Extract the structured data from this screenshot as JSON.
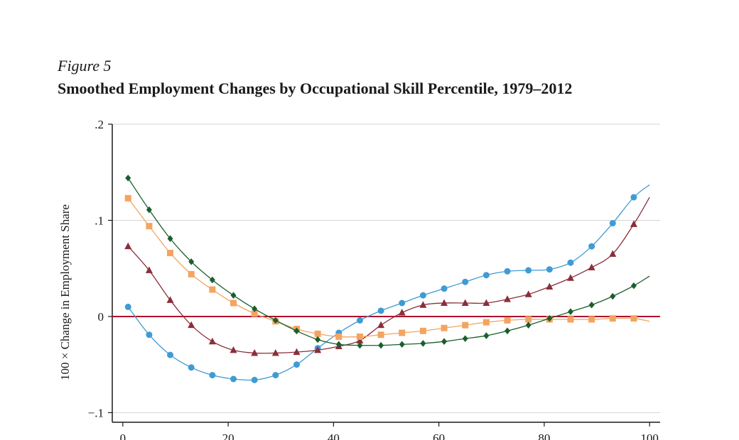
{
  "figure": {
    "label": "Figure 5",
    "title": "Smoothed Employment Changes by Occupational Skill Percentile, 1979–2012"
  },
  "chart_data": {
    "type": "line",
    "title": "Smoothed Employment Changes by Occupational Skill Percentile, 1979–2012",
    "xlabel": "",
    "ylabel": "100 × Change in Employment Share",
    "xlim": [
      -2,
      102
    ],
    "ylim": [
      -0.11,
      0.2
    ],
    "xticks": [
      0,
      20,
      40,
      60,
      80,
      100
    ],
    "xtick_labels": [
      "0",
      "20",
      "40",
      "60",
      "80",
      "100"
    ],
    "yticks": [
      -0.1,
      0,
      0.1,
      0.2
    ],
    "ytick_labels": [
      "−.1",
      "0",
      ".1",
      ".2"
    ],
    "zero_line_color": "#b0102c",
    "grid": "horizontal",
    "series": [
      {
        "marker": "circle",
        "color": "#3f9bd3",
        "x": [
          1,
          5,
          9,
          13,
          17,
          21,
          25,
          29,
          33,
          37,
          41,
          45,
          49,
          53,
          57,
          61,
          65,
          69,
          73,
          77,
          81,
          85,
          89,
          93,
          97,
          100
        ],
        "y": [
          0.01,
          -0.019,
          -0.04,
          -0.053,
          -0.061,
          -0.065,
          -0.066,
          -0.061,
          -0.05,
          -0.033,
          -0.017,
          -0.004,
          0.006,
          0.014,
          0.022,
          0.029,
          0.036,
          0.043,
          0.047,
          0.048,
          0.049,
          0.056,
          0.073,
          0.097,
          0.124,
          0.137
        ]
      },
      {
        "marker": "triangle",
        "color": "#8b2e3a",
        "x": [
          1,
          5,
          9,
          13,
          17,
          21,
          25,
          29,
          33,
          37,
          41,
          45,
          49,
          53,
          57,
          61,
          65,
          69,
          73,
          77,
          81,
          85,
          89,
          93,
          97,
          100
        ],
        "y": [
          0.073,
          0.048,
          0.017,
          -0.009,
          -0.026,
          -0.035,
          -0.038,
          -0.038,
          -0.037,
          -0.035,
          -0.031,
          -0.025,
          -0.009,
          0.004,
          0.012,
          0.014,
          0.014,
          0.014,
          0.018,
          0.023,
          0.031,
          0.04,
          0.051,
          0.065,
          0.096,
          0.124
        ]
      },
      {
        "marker": "square",
        "color": "#f4a460",
        "x": [
          1,
          5,
          9,
          13,
          17,
          21,
          25,
          29,
          33,
          37,
          41,
          45,
          49,
          53,
          57,
          61,
          65,
          69,
          73,
          77,
          81,
          85,
          89,
          93,
          97,
          100
        ],
        "y": [
          0.123,
          0.094,
          0.066,
          0.044,
          0.028,
          0.014,
          0.003,
          -0.005,
          -0.013,
          -0.018,
          -0.021,
          -0.021,
          -0.019,
          -0.017,
          -0.015,
          -0.012,
          -0.009,
          -0.006,
          -0.004,
          -0.003,
          -0.003,
          -0.003,
          -0.003,
          -0.002,
          -0.002,
          -0.005
        ]
      },
      {
        "marker": "diamond",
        "color": "#1b5e2d",
        "x": [
          1,
          5,
          9,
          13,
          17,
          21,
          25,
          29,
          33,
          37,
          41,
          45,
          49,
          53,
          57,
          61,
          65,
          69,
          73,
          77,
          81,
          85,
          89,
          93,
          97,
          100
        ],
        "y": [
          0.144,
          0.111,
          0.081,
          0.057,
          0.038,
          0.022,
          0.008,
          -0.004,
          -0.015,
          -0.024,
          -0.029,
          -0.03,
          -0.03,
          -0.029,
          -0.028,
          -0.026,
          -0.023,
          -0.02,
          -0.015,
          -0.009,
          -0.002,
          0.005,
          0.012,
          0.021,
          0.032,
          0.042
        ]
      }
    ]
  }
}
